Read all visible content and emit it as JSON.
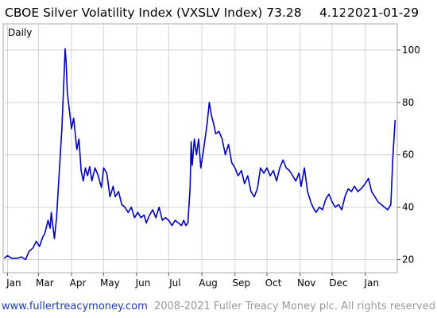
{
  "header": {
    "title": "CBOE Silver Volatility Index (VXSLV Index) 73.28",
    "change": "4.12",
    "date": "2021-01-29"
  },
  "footer": {
    "site": "www.fullertreacymoney.com",
    "copyright": "2008-2021 Fuller Treacy Money plc. All rights reserved"
  },
  "colors": {
    "line": "#0000c0",
    "change": "#1a3fd0",
    "label_blue": "#1a2a9a",
    "grid": "#d3d3d3",
    "site_link": "#1a3ab0",
    "copyright": "#999999"
  },
  "chart_data": {
    "type": "line",
    "title": "CBOE Silver Volatility Index (VXSLV Index) 73.28",
    "legend": "Daily",
    "yaxis_position": "right",
    "grid": true,
    "ylim": [
      15,
      110
    ],
    "yticks": [
      20,
      40,
      60,
      80,
      100
    ],
    "xlim": [
      "2020-01-28",
      "2021-01-31"
    ],
    "xticks": [
      {
        "label": "Jan",
        "date": "2020-02-01"
      },
      {
        "label": "Mar",
        "date": "2020-03-01"
      },
      {
        "label": "Apr",
        "date": "2020-04-01"
      },
      {
        "label": "May",
        "date": "2020-05-01"
      },
      {
        "label": "Jun",
        "date": "2020-06-01"
      },
      {
        "label": "Jul",
        "date": "2020-07-01"
      },
      {
        "label": "Aug",
        "date": "2020-08-01"
      },
      {
        "label": "Sep",
        "date": "2020-09-01"
      },
      {
        "label": "Oct",
        "date": "2020-10-01"
      },
      {
        "label": "Nov",
        "date": "2020-11-01"
      },
      {
        "label": "Dec",
        "date": "2020-12-01"
      },
      {
        "label": "Jan",
        "date": "2021-01-01"
      }
    ],
    "series": [
      {
        "values": [
          [
            "2020-01-29",
            20.5
          ],
          [
            "2020-02-01",
            21.5
          ],
          [
            "2020-02-05",
            20.5
          ],
          [
            "2020-02-10",
            20.5
          ],
          [
            "2020-02-14",
            21.0
          ],
          [
            "2020-02-18",
            20.0
          ],
          [
            "2020-02-21",
            23.0
          ],
          [
            "2020-02-25",
            24.5
          ],
          [
            "2020-02-28",
            27.0
          ],
          [
            "2020-03-02",
            25.0
          ],
          [
            "2020-03-05",
            28.5
          ],
          [
            "2020-03-07",
            30.0
          ],
          [
            "2020-03-10",
            35.0
          ],
          [
            "2020-03-12",
            32.0
          ],
          [
            "2020-03-13",
            38.0
          ],
          [
            "2020-03-16",
            28.0
          ],
          [
            "2020-03-18",
            36.0
          ],
          [
            "2020-03-20",
            50.0
          ],
          [
            "2020-03-23",
            70.0
          ],
          [
            "2020-03-25",
            90.0
          ],
          [
            "2020-03-26",
            100.5
          ],
          [
            "2020-03-27",
            95.0
          ],
          [
            "2020-03-28",
            84.0
          ],
          [
            "2020-03-30",
            77.0
          ],
          [
            "2020-04-01",
            70.0
          ],
          [
            "2020-04-03",
            74.0
          ],
          [
            "2020-04-06",
            62.0
          ],
          [
            "2020-04-08",
            66.0
          ],
          [
            "2020-04-10",
            54.0
          ],
          [
            "2020-04-12",
            50.0
          ],
          [
            "2020-04-14",
            55.0
          ],
          [
            "2020-04-16",
            52.0
          ],
          [
            "2020-04-18",
            55.5
          ],
          [
            "2020-04-20",
            50.0
          ],
          [
            "2020-04-23",
            55.0
          ],
          [
            "2020-04-26",
            52.0
          ],
          [
            "2020-04-29",
            47.5
          ],
          [
            "2020-05-01",
            55.0
          ],
          [
            "2020-05-04",
            53.0
          ],
          [
            "2020-05-07",
            44.0
          ],
          [
            "2020-05-10",
            48.0
          ],
          [
            "2020-05-12",
            44.0
          ],
          [
            "2020-05-15",
            46.0
          ],
          [
            "2020-05-18",
            41.0
          ],
          [
            "2020-05-21",
            40.0
          ],
          [
            "2020-05-24",
            38.0
          ],
          [
            "2020-05-27",
            40.0
          ],
          [
            "2020-05-30",
            36.0
          ],
          [
            "2020-06-02",
            38.0
          ],
          [
            "2020-06-05",
            36.0
          ],
          [
            "2020-06-08",
            37.0
          ],
          [
            "2020-06-10",
            34.0
          ],
          [
            "2020-06-13",
            37.0
          ],
          [
            "2020-06-16",
            39.0
          ],
          [
            "2020-06-19",
            36.0
          ],
          [
            "2020-06-22",
            40.0
          ],
          [
            "2020-06-25",
            35.0
          ],
          [
            "2020-06-28",
            36.0
          ],
          [
            "2020-07-01",
            35.0
          ],
          [
            "2020-07-04",
            33.0
          ],
          [
            "2020-07-07",
            35.0
          ],
          [
            "2020-07-10",
            34.0
          ],
          [
            "2020-07-13",
            33.0
          ],
          [
            "2020-07-15",
            35.0
          ],
          [
            "2020-07-17",
            33.0
          ],
          [
            "2020-07-19",
            34.0
          ],
          [
            "2020-07-21",
            47.0
          ],
          [
            "2020-07-22",
            65.0
          ],
          [
            "2020-07-23",
            56.0
          ],
          [
            "2020-07-25",
            66.0
          ],
          [
            "2020-07-27",
            60.0
          ],
          [
            "2020-07-29",
            66.0
          ],
          [
            "2020-07-31",
            55.0
          ],
          [
            "2020-08-03",
            63.0
          ],
          [
            "2020-08-06",
            72.0
          ],
          [
            "2020-08-08",
            80.0
          ],
          [
            "2020-08-10",
            75.0
          ],
          [
            "2020-08-12",
            72.0
          ],
          [
            "2020-08-14",
            68.0
          ],
          [
            "2020-08-17",
            69.0
          ],
          [
            "2020-08-20",
            66.0
          ],
          [
            "2020-08-23",
            60.0
          ],
          [
            "2020-08-26",
            64.0
          ],
          [
            "2020-08-29",
            57.0
          ],
          [
            "2020-09-01",
            55.0
          ],
          [
            "2020-09-04",
            52.0
          ],
          [
            "2020-09-07",
            54.0
          ],
          [
            "2020-09-10",
            49.0
          ],
          [
            "2020-09-13",
            52.0
          ],
          [
            "2020-09-16",
            46.0
          ],
          [
            "2020-09-19",
            44.0
          ],
          [
            "2020-09-22",
            47.0
          ],
          [
            "2020-09-25",
            55.0
          ],
          [
            "2020-09-28",
            53.0
          ],
          [
            "2020-10-01",
            55.0
          ],
          [
            "2020-10-04",
            52.0
          ],
          [
            "2020-10-07",
            54.0
          ],
          [
            "2020-10-10",
            50.0
          ],
          [
            "2020-10-13",
            55.0
          ],
          [
            "2020-10-16",
            58.0
          ],
          [
            "2020-10-19",
            55.0
          ],
          [
            "2020-10-22",
            54.0
          ],
          [
            "2020-10-25",
            52.0
          ],
          [
            "2020-10-28",
            50.0
          ],
          [
            "2020-10-31",
            53.0
          ],
          [
            "2020-11-02",
            48.0
          ],
          [
            "2020-11-05",
            55.0
          ],
          [
            "2020-11-08",
            46.0
          ],
          [
            "2020-11-11",
            42.0
          ],
          [
            "2020-11-13",
            40.0
          ],
          [
            "2020-11-16",
            38.0
          ],
          [
            "2020-11-19",
            40.0
          ],
          [
            "2020-11-22",
            39.0
          ],
          [
            "2020-11-25",
            43.0
          ],
          [
            "2020-11-28",
            45.0
          ],
          [
            "2020-12-01",
            42.0
          ],
          [
            "2020-12-04",
            40.0
          ],
          [
            "2020-12-07",
            41.0
          ],
          [
            "2020-12-10",
            39.0
          ],
          [
            "2020-12-13",
            44.0
          ],
          [
            "2020-12-16",
            47.0
          ],
          [
            "2020-12-19",
            46.0
          ],
          [
            "2020-12-22",
            48.0
          ],
          [
            "2020-12-25",
            46.0
          ],
          [
            "2020-12-28",
            47.0
          ],
          [
            "2021-01-01",
            49.0
          ],
          [
            "2021-01-04",
            51.0
          ],
          [
            "2021-01-07",
            46.0
          ],
          [
            "2021-01-10",
            44.0
          ],
          [
            "2021-01-13",
            42.0
          ],
          [
            "2021-01-16",
            41.0
          ],
          [
            "2021-01-19",
            40.0
          ],
          [
            "2021-01-22",
            39.0
          ],
          [
            "2021-01-25",
            41.0
          ],
          [
            "2021-01-27",
            60.0
          ],
          [
            "2021-01-29",
            73.28
          ]
        ]
      }
    ]
  }
}
